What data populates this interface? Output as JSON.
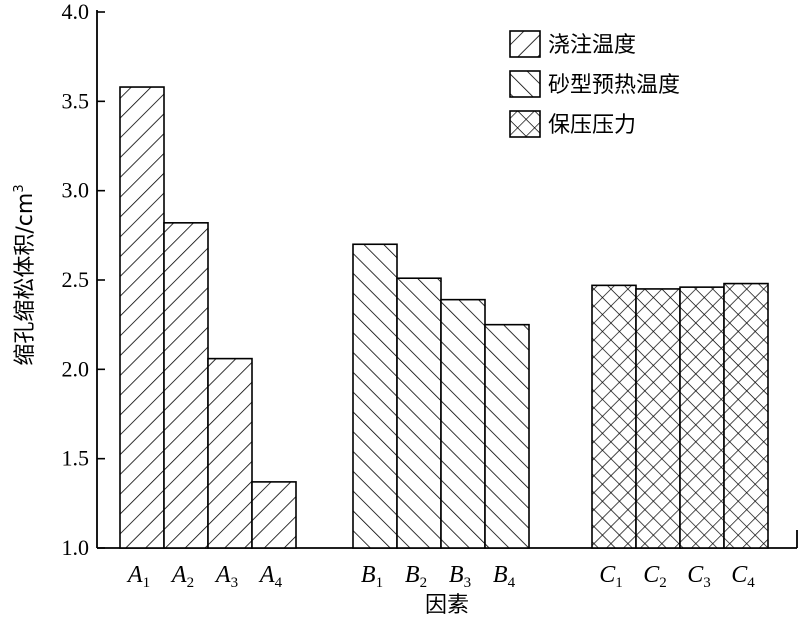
{
  "chart_data": {
    "type": "bar",
    "title": "",
    "xlabel": "因素",
    "ylabel": "缩孔缩松体积/cm",
    "ylabel_sup": "3",
    "ylim": [
      1.0,
      4.0
    ],
    "yticks": [
      "1.0",
      "1.5",
      "2.0",
      "2.5",
      "3.0",
      "3.5",
      "4.0"
    ],
    "grid": false,
    "legend_position": "top-right",
    "series": [
      {
        "name": "浇注温度",
        "pattern": "diagonal-forward",
        "categories": [
          {
            "letter": "A",
            "sub": "1"
          },
          {
            "letter": "A",
            "sub": "2"
          },
          {
            "letter": "A",
            "sub": "3"
          },
          {
            "letter": "A",
            "sub": "4"
          }
        ],
        "values": [
          3.58,
          2.82,
          2.06,
          1.37
        ]
      },
      {
        "name": "砂型预热温度",
        "pattern": "diagonal-backward",
        "categories": [
          {
            "letter": "B",
            "sub": "1"
          },
          {
            "letter": "B",
            "sub": "2"
          },
          {
            "letter": "B",
            "sub": "3"
          },
          {
            "letter": "B",
            "sub": "4"
          }
        ],
        "values": [
          2.7,
          2.51,
          2.39,
          2.25
        ]
      },
      {
        "name": "保压压力",
        "pattern": "crosshatch",
        "categories": [
          {
            "letter": "C",
            "sub": "1"
          },
          {
            "letter": "C",
            "sub": "2"
          },
          {
            "letter": "C",
            "sub": "3"
          },
          {
            "letter": "C",
            "sub": "4"
          }
        ],
        "values": [
          2.47,
          2.45,
          2.46,
          2.48
        ]
      }
    ]
  }
}
